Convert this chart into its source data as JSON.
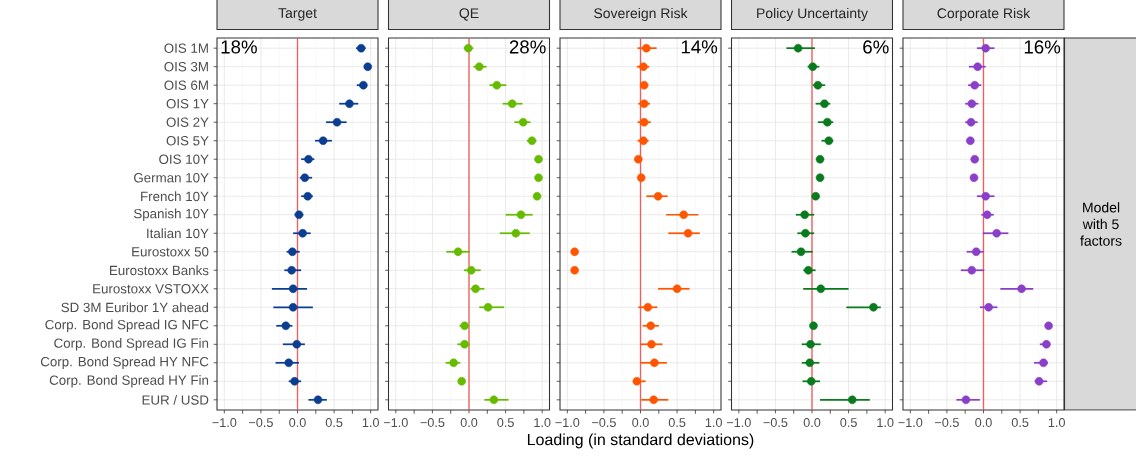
{
  "chart_data": [
    {
      "type": "scatter",
      "title": "Target",
      "orientation": "horizontal",
      "marker": "circle",
      "grid": true,
      "color": "#0b3d91",
      "categories": [
        "OIS 1M",
        "OIS 3M",
        "OIS 6M",
        "OIS 1Y",
        "OIS 2Y",
        "OIS 5Y",
        "OIS 10Y",
        "German 10Y",
        "French 10Y",
        "Spanish 10Y",
        "Italian 10Y",
        "Eurostoxx 50",
        "Eurostoxx Banks",
        "Eurostoxx VSTOXX",
        "SD 3M Euribor 1Y ahead",
        "Corp. Bond Spread IG NFC",
        "Corp. Bond Spread IG Fin",
        "Corp. Bond Spread HY NFC",
        "Corp. Bond Spread HY Fin",
        "EUR / USD"
      ],
      "values": [
        0.87,
        0.96,
        0.9,
        0.71,
        0.54,
        0.35,
        0.15,
        0.1,
        0.14,
        0.02,
        0.07,
        -0.07,
        -0.08,
        -0.06,
        -0.06,
        -0.16,
        -0.01,
        -0.12,
        -0.04,
        0.28
      ],
      "errors": [
        [
          0.8,
          0.93
        ],
        null,
        [
          0.81,
          0.95
        ],
        [
          0.57,
          0.83
        ],
        [
          0.39,
          0.67
        ],
        [
          0.24,
          0.47
        ],
        [
          0.05,
          0.23
        ],
        [
          0.03,
          0.2
        ],
        [
          0.05,
          0.21
        ],
        [
          -0.04,
          0.08
        ],
        [
          -0.06,
          0.18
        ],
        [
          -0.15,
          0.03
        ],
        [
          -0.18,
          0.05
        ],
        [
          -0.35,
          0.13
        ],
        [
          -0.33,
          0.21
        ],
        [
          -0.29,
          -0.07
        ],
        [
          -0.2,
          0.1
        ],
        [
          -0.3,
          0.02
        ],
        [
          -0.12,
          0.05
        ],
        [
          0.15,
          0.4
        ]
      ],
      "xlim": [
        -1.1,
        1.1
      ],
      "xticks": [
        {
          "value": -1,
          "label": "−1.0"
        },
        {
          "value": -0.5,
          "label": "−0.5"
        },
        {
          "value": 0,
          "label": "0.0"
        },
        {
          "value": 0.5,
          "label": "0.5"
        },
        {
          "value": 1,
          "label": "1.0"
        }
      ],
      "ref_lines": [
        {
          "axis": "x",
          "value": 0,
          "color": "#f45b5b"
        }
      ],
      "annotations": [
        "18%"
      ]
    },
    {
      "type": "scatter",
      "title": "QE",
      "orientation": "horizontal",
      "marker": "circle",
      "grid": true,
      "color": "#66bb00",
      "tick_labels": "x",
      "categories": [
        null,
        null,
        null,
        null,
        null,
        null,
        null,
        null,
        null,
        null,
        null,
        null,
        null,
        null,
        null,
        null,
        null,
        null,
        null,
        null
      ],
      "values": [
        -0.01,
        0.14,
        0.38,
        0.59,
        0.74,
        0.86,
        0.95,
        0.95,
        0.93,
        0.71,
        0.64,
        -0.15,
        0.03,
        0.09,
        0.26,
        -0.06,
        -0.06,
        -0.21,
        -0.1,
        0.34
      ],
      "errors": [
        [
          -0.07,
          0.06
        ],
        [
          0.06,
          0.24
        ],
        [
          0.28,
          0.51
        ],
        [
          0.46,
          0.73
        ],
        [
          0.62,
          0.84
        ],
        [
          0.79,
          0.92
        ],
        null,
        null,
        null,
        [
          0.5,
          0.87
        ],
        [
          0.42,
          0.83
        ],
        [
          -0.31,
          0.01
        ],
        [
          -0.07,
          0.16
        ],
        [
          0.02,
          0.21
        ],
        [
          0.14,
          0.48
        ],
        [
          -0.13,
          0.0
        ],
        [
          -0.16,
          0.01
        ],
        [
          -0.32,
          -0.12
        ],
        null,
        [
          0.21,
          0.54
        ]
      ],
      "xlim": [
        -1.1,
        1.1
      ],
      "xticks": [
        {
          "value": -1,
          "label": "−1.0"
        },
        {
          "value": -0.5,
          "label": "−0.5"
        },
        {
          "value": 0,
          "label": "0.0"
        },
        {
          "value": 0.5,
          "label": "0.5"
        },
        {
          "value": 1,
          "label": "1.0"
        }
      ],
      "ref_lines": [
        {
          "axis": "x",
          "value": 0,
          "color": "#f45b5b"
        }
      ],
      "annotations": [
        "28%"
      ]
    },
    {
      "type": "scatter",
      "title": "Sovereign Risk",
      "orientation": "horizontal",
      "marker": "circle",
      "grid": true,
      "color": "#ff5500",
      "tick_labels": "x",
      "xlabel": "Loading (in standard deviations)",
      "categories": [
        null,
        null,
        null,
        null,
        null,
        null,
        null,
        null,
        null,
        null,
        null,
        null,
        null,
        null,
        null,
        null,
        null,
        null,
        null,
        null
      ],
      "values": [
        0.08,
        0.04,
        0.05,
        0.05,
        0.05,
        0.04,
        -0.03,
        0.01,
        0.24,
        0.59,
        0.65,
        -0.9,
        -0.9,
        0.5,
        0.1,
        0.14,
        0.15,
        0.19,
        -0.05,
        0.18
      ],
      "errors": [
        [
          -0.04,
          0.22
        ],
        [
          -0.05,
          0.12
        ],
        null,
        [
          -0.03,
          0.13
        ],
        [
          -0.04,
          0.14
        ],
        [
          -0.04,
          0.11
        ],
        null,
        null,
        [
          0.08,
          0.37
        ],
        [
          0.35,
          0.79
        ],
        [
          0.38,
          0.81
        ],
        null,
        null,
        [
          0.24,
          0.67
        ],
        [
          -0.03,
          0.23
        ],
        [
          0.03,
          0.25
        ],
        [
          0.0,
          0.3
        ],
        [
          0.0,
          0.36
        ],
        [
          -0.1,
          0.07
        ],
        [
          0.01,
          0.38
        ]
      ],
      "xlim": [
        -1.1,
        1.1
      ],
      "xticks": [
        {
          "value": -1,
          "label": "−1.0"
        },
        {
          "value": -0.5,
          "label": "−0.5"
        },
        {
          "value": 0,
          "label": "0.0"
        },
        {
          "value": 0.5,
          "label": "0.5"
        },
        {
          "value": 1,
          "label": "1.0"
        }
      ],
      "ref_lines": [
        {
          "axis": "x",
          "value": 0,
          "color": "#f45b5b"
        }
      ],
      "annotations": [
        "14%"
      ]
    },
    {
      "type": "scatter",
      "title": "Policy Uncertainty",
      "orientation": "horizontal",
      "marker": "circle",
      "grid": true,
      "color": "#0a7a1e",
      "tick_labels": "x",
      "categories": [
        null,
        null,
        null,
        null,
        null,
        null,
        null,
        null,
        null,
        null,
        null,
        null,
        null,
        null,
        null,
        null,
        null,
        null,
        null,
        null
      ],
      "values": [
        -0.19,
        0.01,
        0.08,
        0.17,
        0.21,
        0.23,
        0.11,
        0.11,
        0.05,
        -0.1,
        -0.09,
        -0.15,
        -0.05,
        0.12,
        0.84,
        0.02,
        -0.02,
        -0.03,
        -0.01,
        0.55
      ],
      "errors": [
        [
          -0.35,
          0.04
        ],
        [
          -0.06,
          0.1
        ],
        [
          0.01,
          0.18
        ],
        [
          0.05,
          0.25
        ],
        [
          0.08,
          0.29
        ],
        [
          0.13,
          0.29
        ],
        null,
        null,
        null,
        [
          -0.22,
          0.03
        ],
        [
          -0.2,
          0.03
        ],
        [
          -0.28,
          0.01
        ],
        [
          -0.12,
          0.05
        ],
        [
          -0.12,
          0.5
        ],
        [
          0.47,
          0.94
        ],
        null,
        [
          -0.14,
          0.12
        ],
        [
          -0.14,
          0.1
        ],
        [
          -0.13,
          0.11
        ],
        [
          0.11,
          0.79
        ]
      ],
      "xlim": [
        -1.1,
        1.1
      ],
      "xticks": [
        {
          "value": -1,
          "label": "−1.0"
        },
        {
          "value": -0.5,
          "label": "−0.5"
        },
        {
          "value": 0,
          "label": "0.0"
        },
        {
          "value": 0.5,
          "label": "0.5"
        },
        {
          "value": 1,
          "label": "1.0"
        }
      ],
      "ref_lines": [
        {
          "axis": "x",
          "value": 0,
          "color": "#f45b5b"
        }
      ],
      "annotations": [
        "6%"
      ]
    },
    {
      "type": "scatter",
      "title": "Corporate Risk",
      "orientation": "horizontal",
      "marker": "circle",
      "grid": true,
      "color": "#8a3fc8",
      "tick_labels": "x",
      "categories": [
        null,
        null,
        null,
        null,
        null,
        null,
        null,
        null,
        null,
        null,
        null,
        null,
        null,
        null,
        null,
        null,
        null,
        null,
        null,
        null
      ],
      "values": [
        0.03,
        -0.08,
        -0.12,
        -0.16,
        -0.17,
        -0.18,
        -0.12,
        -0.13,
        0.03,
        0.05,
        0.18,
        -0.1,
        -0.16,
        0.52,
        0.07,
        0.89,
        0.86,
        0.82,
        0.76,
        -0.24
      ],
      "errors": [
        [
          -0.09,
          0.15
        ],
        [
          -0.2,
          0.03
        ],
        [
          -0.21,
          -0.03
        ],
        [
          -0.25,
          -0.07
        ],
        [
          -0.25,
          -0.08
        ],
        null,
        null,
        null,
        [
          -0.09,
          0.15
        ],
        [
          -0.03,
          0.14
        ],
        [
          -0.01,
          0.34
        ],
        [
          -0.23,
          0.0
        ],
        [
          -0.31,
          0.01
        ],
        [
          0.23,
          0.68
        ],
        [
          -0.05,
          0.19
        ],
        null,
        [
          0.77,
          0.91
        ],
        [
          0.69,
          0.88
        ],
        [
          0.7,
          0.87
        ],
        [
          -0.37,
          -0.05
        ]
      ],
      "xlim": [
        -1.1,
        1.1
      ],
      "xticks": [
        {
          "value": -1,
          "label": "−1.0"
        },
        {
          "value": -0.5,
          "label": "−0.5"
        },
        {
          "value": 0,
          "label": "0.0"
        },
        {
          "value": 0.5,
          "label": "0.5"
        },
        {
          "value": 1,
          "label": "1.0"
        }
      ],
      "ref_lines": [
        {
          "axis": "x",
          "value": 0,
          "color": "#f45b5b"
        }
      ],
      "annotations": [
        "16%",
        "Model with 5 factors"
      ]
    }
  ]
}
